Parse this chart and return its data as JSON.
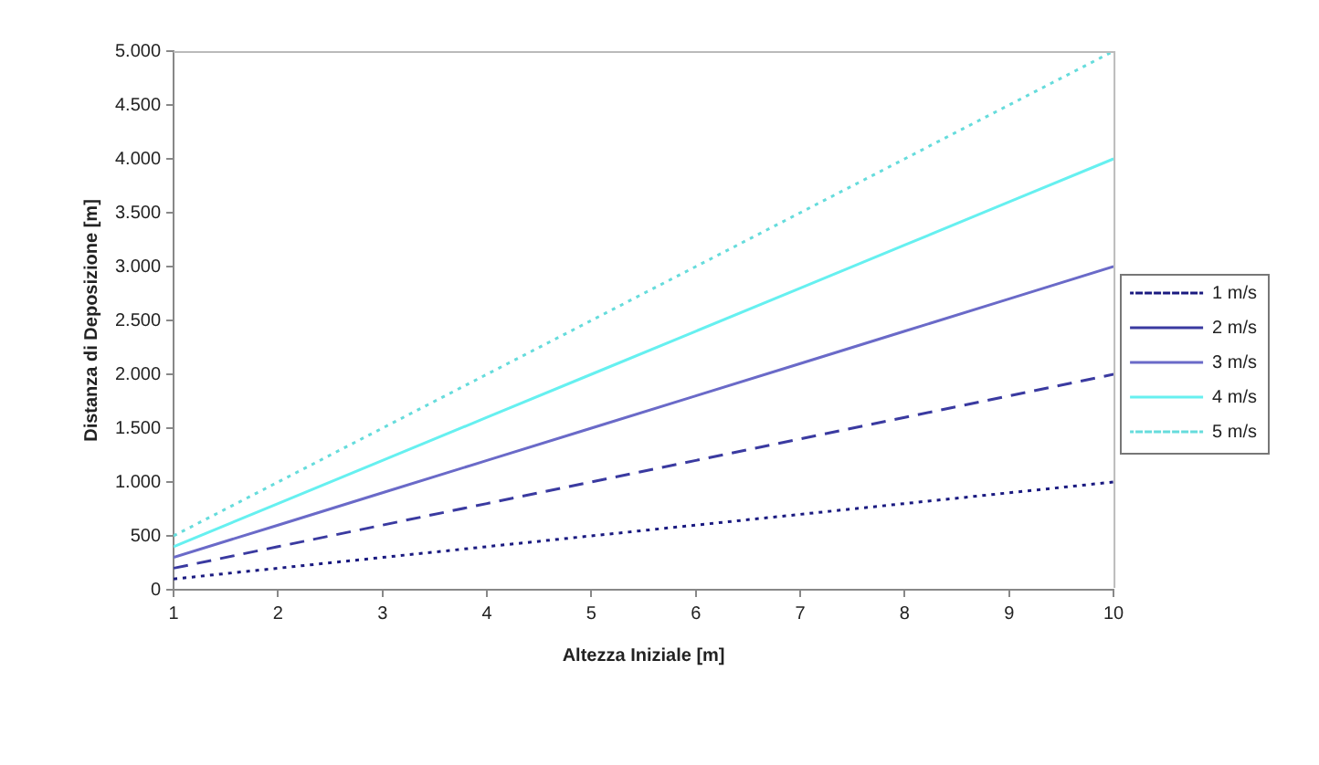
{
  "chart_data": {
    "type": "line",
    "xlabel": "Altezza Iniziale [m]",
    "ylabel": "Distanza di Deposizione [m]",
    "x": [
      1,
      2,
      3,
      4,
      5,
      6,
      7,
      8,
      9,
      10
    ],
    "xlim": [
      1,
      10
    ],
    "xticks": [
      1,
      2,
      3,
      4,
      5,
      6,
      7,
      8,
      9,
      10
    ],
    "ylim": [
      0,
      5000
    ],
    "yticks": [
      0,
      500,
      {
        "value": 1000,
        "label": "1.000"
      },
      {
        "value": 1500,
        "label": "1.500"
      },
      {
        "value": 2000,
        "label": "2.000"
      },
      {
        "value": 2500,
        "label": "2.500"
      },
      {
        "value": 3000,
        "label": "3.000"
      },
      {
        "value": 3500,
        "label": "3.500"
      },
      {
        "value": 4000,
        "label": "4.000"
      },
      {
        "value": 4500,
        "label": "4.500"
      },
      {
        "value": 5000,
        "label": "5.000"
      }
    ],
    "grid": false,
    "legend": "right",
    "marker": "none",
    "series": [
      {
        "name": "1 m/s",
        "color": "#1a1a80",
        "line_style": "dotted",
        "values": [
          100,
          200,
          300,
          400,
          500,
          600,
          700,
          800,
          900,
          1000
        ]
      },
      {
        "name": "2 m/s",
        "color": "#3a3aa0",
        "line_style": "dashed",
        "values": [
          200,
          400,
          600,
          800,
          1000,
          1200,
          1400,
          1600,
          1800,
          2000
        ]
      },
      {
        "name": "3 m/s",
        "color": "#6a6ac8",
        "line_style": "solid",
        "values": [
          300,
          600,
          900,
          1200,
          1500,
          1800,
          2100,
          2400,
          2700,
          3000
        ]
      },
      {
        "name": "4 m/s",
        "color": "#66f0f0",
        "line_style": "solid",
        "values": [
          400,
          800,
          1200,
          1600,
          2000,
          2400,
          2800,
          3200,
          3600,
          4000
        ]
      },
      {
        "name": "5 m/s",
        "color": "#66dcdc",
        "line_style": "dotted",
        "values": [
          500,
          1000,
          1500,
          2000,
          2500,
          3000,
          3500,
          4000,
          4500,
          5000
        ]
      }
    ]
  }
}
